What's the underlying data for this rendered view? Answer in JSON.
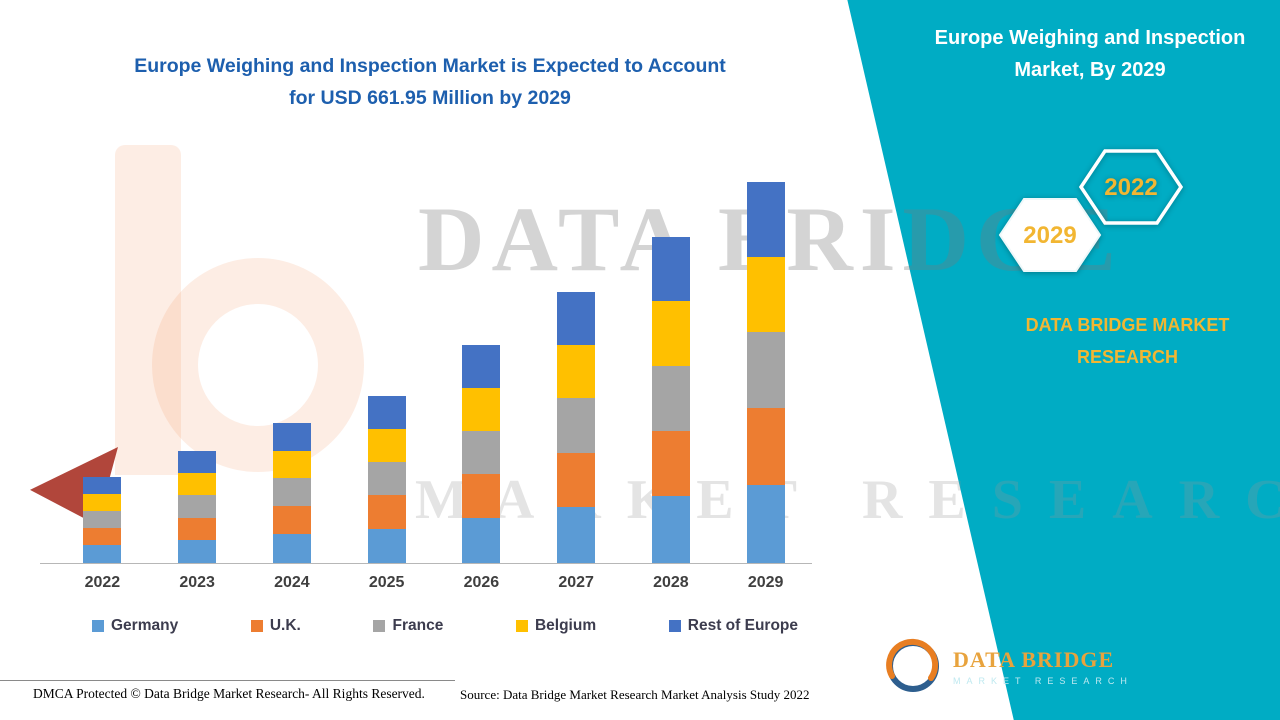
{
  "left_title": {
    "line1": "Europe Weighing and Inspection Market is Expected to Account",
    "line2": "for USD 661.95 Million by 2029"
  },
  "right_panel": {
    "title_line1": "Europe Weighing and Inspection",
    "title_line2": "Market, By 2029",
    "hexagon_front_year": "2029",
    "hexagon_back_year": "2022",
    "brand_line1": "DATA BRIDGE MARKET",
    "brand_line2": "RESEARCH"
  },
  "logo": {
    "title": "DATA BRIDGE",
    "subtitle": "MARKET RESEARCH"
  },
  "watermark": {
    "line1": "DATA BRIDGE",
    "line2": "MARKET RESEARCH"
  },
  "footer": {
    "dmca": "DMCA Protected © Data Bridge Market Research- All Rights Reserved.",
    "source": "Source: Data Bridge Market Research Market Analysis Study 2022"
  },
  "colors": {
    "teal": "#00ACC4",
    "title_blue": "#1D5FAE",
    "gold": "#F2B632",
    "germany": "#5B9BD5",
    "uk": "#ED7D31",
    "france": "#A5A5A5",
    "belgium": "#FFC000",
    "rest_of_europe": "#4472C4"
  },
  "chart_data": {
    "type": "bar",
    "stacked": true,
    "title": "Europe Weighing and Inspection Market is Expected to Account for USD 661.95 Million by 2029",
    "unit": "USD Million",
    "categories": [
      "2022",
      "2023",
      "2024",
      "2025",
      "2026",
      "2027",
      "2028",
      "2029"
    ],
    "series": [
      {
        "name": "Germany",
        "color": "#5B9BD5",
        "values": [
          31,
          40,
          50,
          60,
          78,
          97,
          116,
          136
        ]
      },
      {
        "name": "U.K.",
        "color": "#ED7D31",
        "values": [
          30,
          39,
          49,
          58,
          76,
          95,
          114,
          133
        ]
      },
      {
        "name": "France",
        "color": "#A5A5A5",
        "values": [
          30,
          39,
          48,
          58,
          76,
          94,
          113,
          132
        ]
      },
      {
        "name": "Belgium",
        "color": "#FFC000",
        "values": [
          29,
          39,
          48,
          57,
          75,
          93,
          112,
          131
        ]
      },
      {
        "name": "Rest of Europe",
        "color": "#4472C4",
        "values": [
          29,
          38,
          48,
          57,
          74,
          92,
          111,
          129.95
        ]
      }
    ],
    "totals": [
      149,
      195,
      243,
      290,
      379,
      471,
      566,
      661.95
    ],
    "legend_position": "bottom",
    "grid": false,
    "xlabel": "",
    "ylabel": ""
  }
}
